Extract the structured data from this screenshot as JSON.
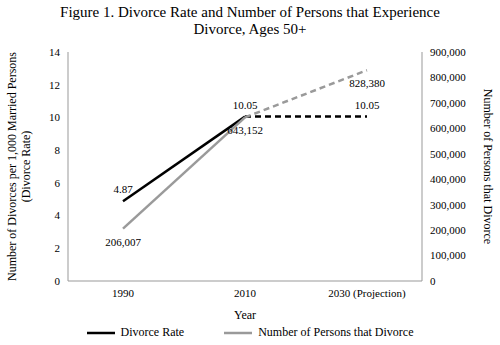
{
  "chart_data": {
    "type": "line",
    "title": "Figure 1. Divorce Rate and Number of Persons that Experience Divorce, Ages 50+",
    "xlabel": "Year",
    "ylabel": [
      "Number of Divorces per 1,000 Married Persons",
      "(Divorce Rate)"
    ],
    "y2label": "Number of Persons that Divorce",
    "categories": [
      "1990",
      "2010",
      "2030 (Projection)"
    ],
    "ylim": [
      0,
      14
    ],
    "yticks": [
      0,
      2,
      4,
      6,
      8,
      10,
      12,
      14
    ],
    "y2lim": [
      0,
      900000
    ],
    "y2ticks": [
      0,
      {
        "value": 100000,
        "label": "100,000"
      },
      {
        "value": 200000,
        "label": "200,000"
      },
      {
        "value": 300000,
        "label": "300,000"
      },
      {
        "value": 400000,
        "label": "400,000"
      },
      {
        "value": 500000,
        "label": "500,000"
      },
      {
        "value": 600000,
        "label": "600,000"
      },
      {
        "value": 700000,
        "label": "700,000"
      },
      {
        "value": 800000,
        "label": "800,000"
      },
      {
        "value": 900000,
        "label": "900,000"
      }
    ],
    "grid": false,
    "legend": "bottom",
    "data_labels": true,
    "series": [
      {
        "name": "Divorce Rate",
        "color": "#000000",
        "line_style": "solid",
        "values": [
          4.87,
          10.05,
          null
        ]
      },
      {
        "name": "Number of Persons that Divorce",
        "color": "#9a9a9a",
        "line_style": "solid",
        "axis": "y2",
        "values": [
          206007,
          643152,
          null
        ],
        "value_labels": [
          "206,007",
          "643,152",
          null
        ]
      },
      {
        "name": "Divorce Rate",
        "color": "#000000",
        "line_style": "dashed",
        "values": [
          null,
          10.05,
          10.05
        ]
      },
      {
        "name": "Number of Persons that Divorce",
        "color": "#9a9a9a",
        "line_style": "dashed",
        "axis": "y2",
        "values": [
          null,
          643152,
          828380
        ],
        "value_labels": [
          null,
          "643,152",
          "828,380"
        ]
      }
    ]
  }
}
